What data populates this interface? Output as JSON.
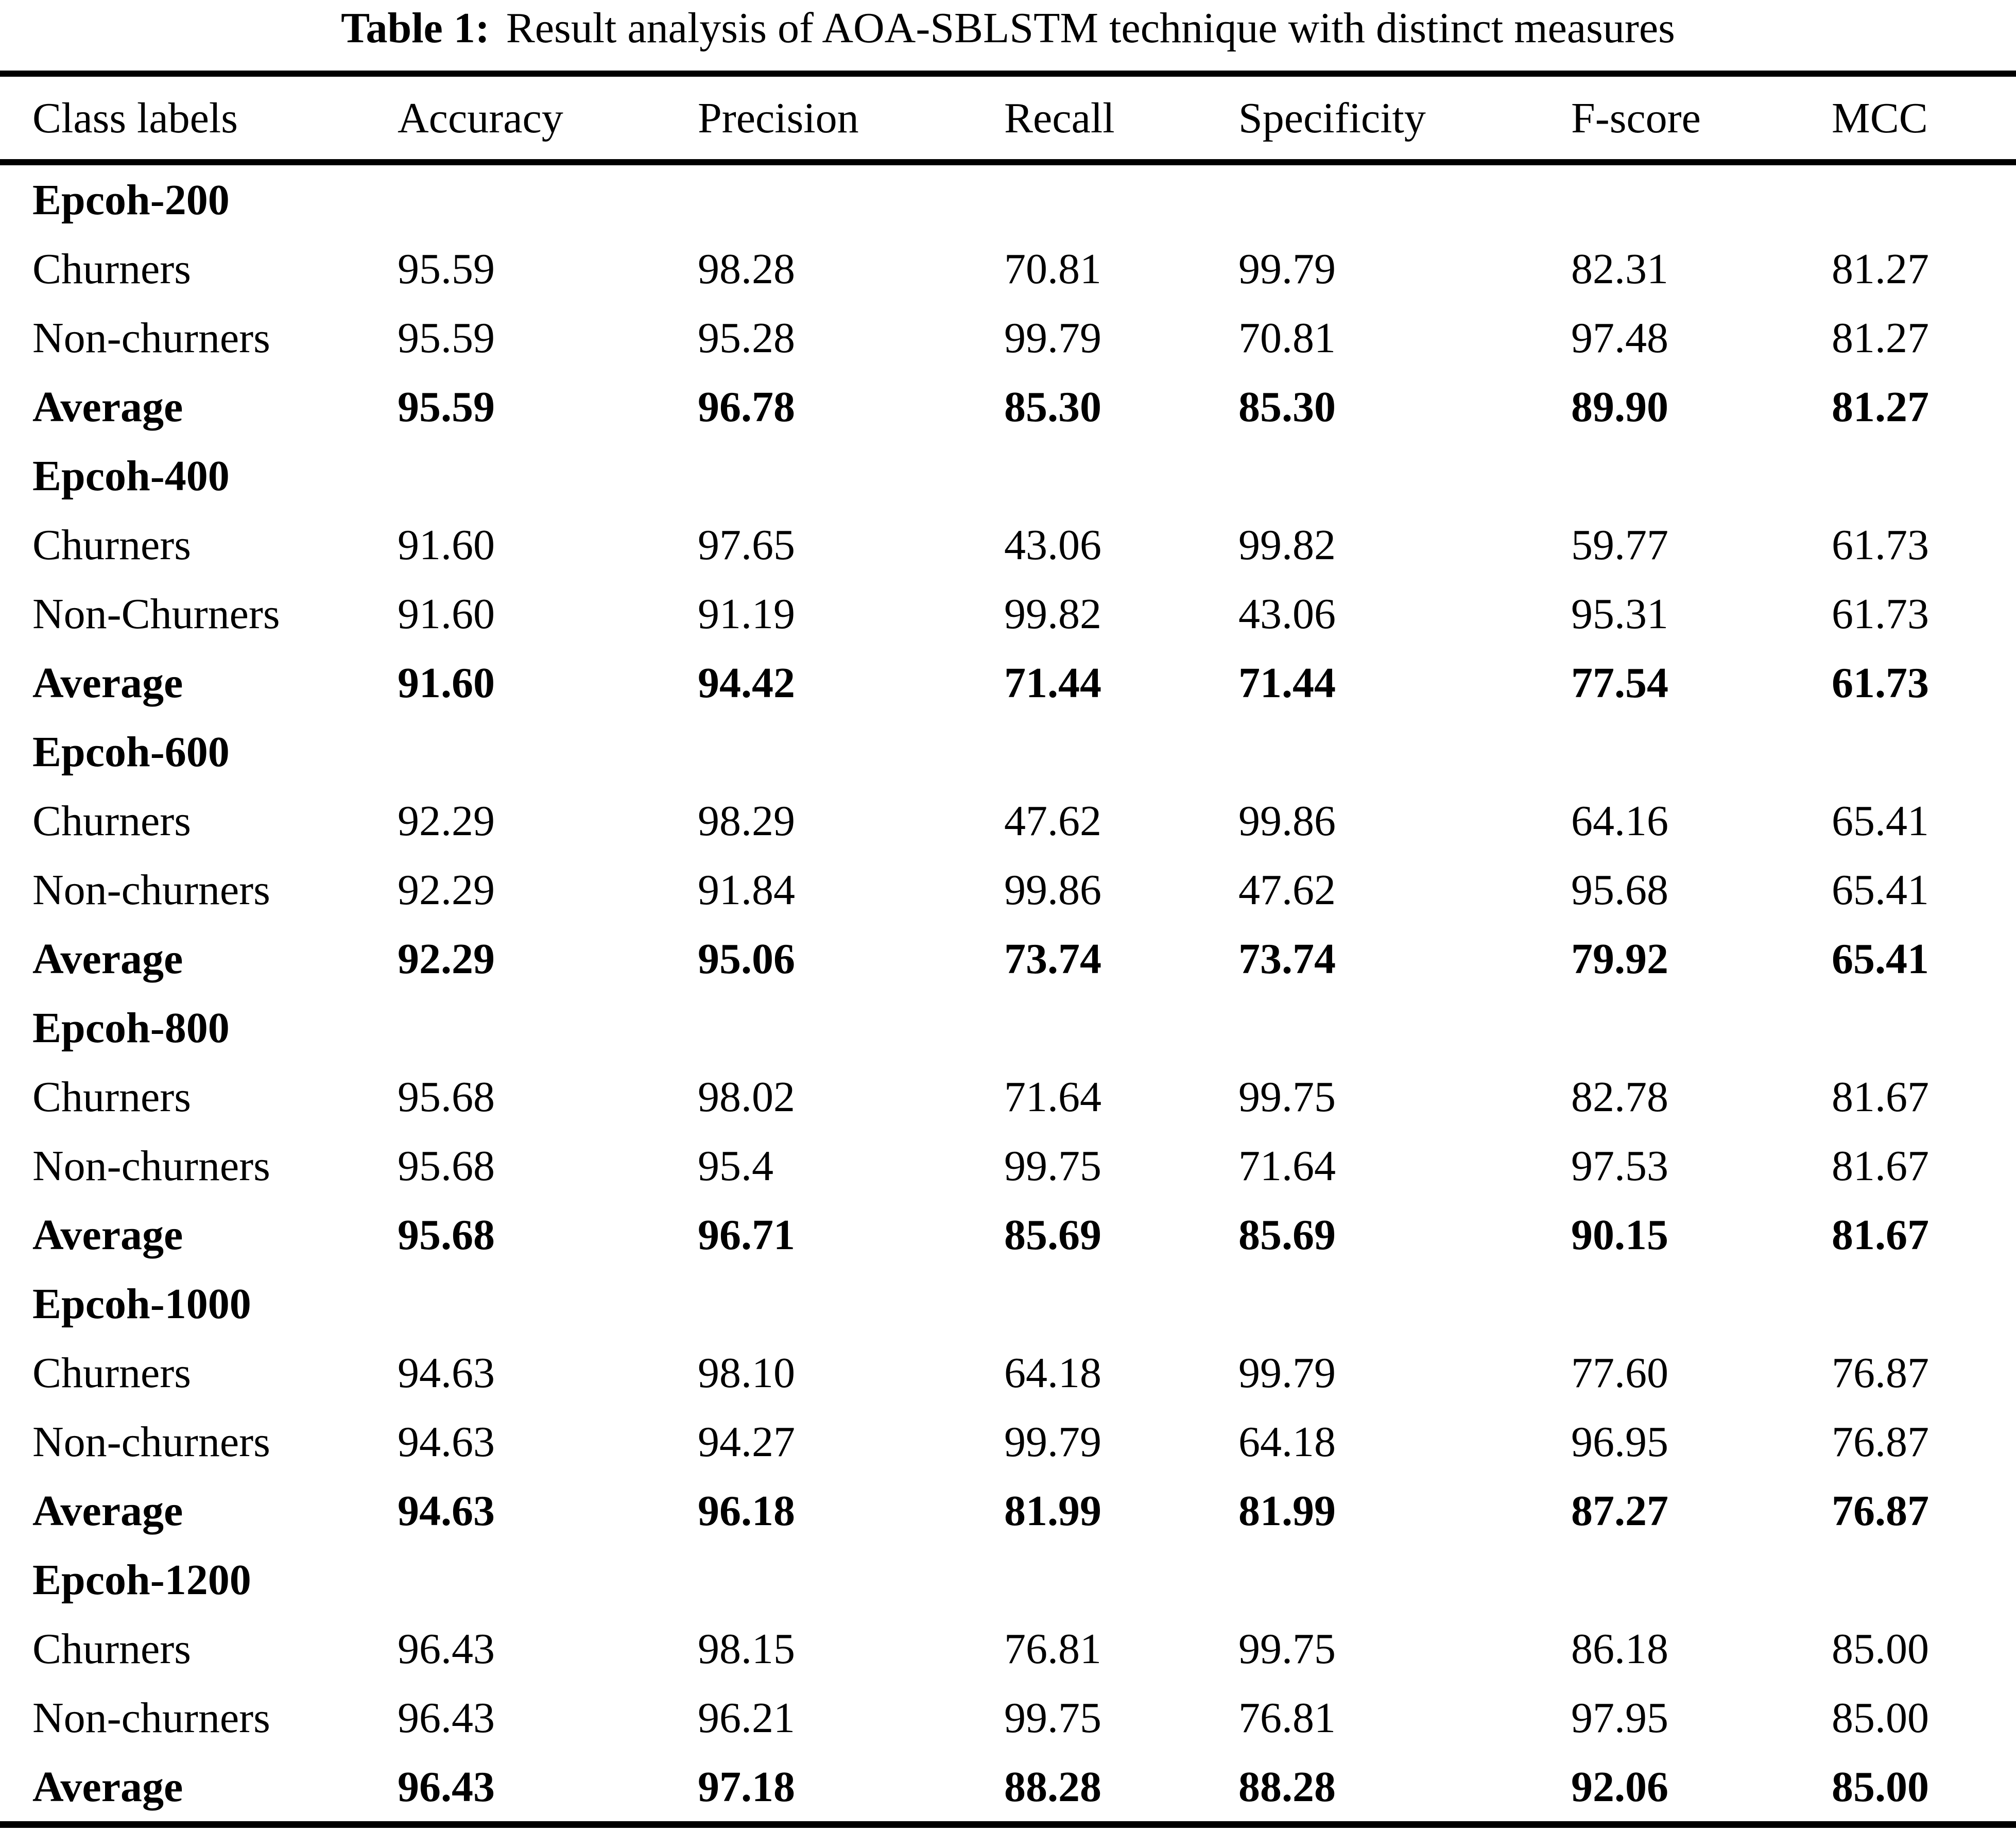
{
  "title": {
    "label": "Table 1:",
    "text": "Result analysis of AOA-SBLSTM technique with distinct measures"
  },
  "columns": [
    "Class labels",
    "Accuracy",
    "Precision",
    "Recall",
    "Specificity",
    "F-score",
    "MCC"
  ],
  "sections": [
    {
      "header": "Epcoh-200",
      "rows": [
        {
          "label": "Churners",
          "values": [
            "95.59",
            "98.28",
            "70.81",
            "99.79",
            "82.31",
            "81.27"
          ]
        },
        {
          "label": "Non-churners",
          "values": [
            "95.59",
            "95.28",
            "99.79",
            "70.81",
            "97.48",
            "81.27"
          ]
        },
        {
          "label": "Average",
          "values": [
            "95.59",
            "96.78",
            "85.30",
            "85.30",
            "89.90",
            "81.27"
          ]
        }
      ]
    },
    {
      "header": "Epcoh-400",
      "rows": [
        {
          "label": "Churners",
          "values": [
            "91.60",
            "97.65",
            "43.06",
            "99.82",
            "59.77",
            "61.73"
          ]
        },
        {
          "label": "Non-Churners",
          "values": [
            "91.60",
            "91.19",
            "99.82",
            "43.06",
            "95.31",
            "61.73"
          ]
        },
        {
          "label": "Average",
          "values": [
            "91.60",
            "94.42",
            "71.44",
            "71.44",
            "77.54",
            "61.73"
          ]
        }
      ]
    },
    {
      "header": "Epcoh-600",
      "rows": [
        {
          "label": "Churners",
          "values": [
            "92.29",
            "98.29",
            "47.62",
            "99.86",
            "64.16",
            "65.41"
          ]
        },
        {
          "label": "Non-churners",
          "values": [
            "92.29",
            "91.84",
            "99.86",
            "47.62",
            "95.68",
            "65.41"
          ]
        },
        {
          "label": "Average",
          "values": [
            "92.29",
            "95.06",
            "73.74",
            "73.74",
            "79.92",
            "65.41"
          ]
        }
      ]
    },
    {
      "header": "Epcoh-800",
      "rows": [
        {
          "label": "Churners",
          "values": [
            "95.68",
            "98.02",
            "71.64",
            "99.75",
            "82.78",
            "81.67"
          ]
        },
        {
          "label": "Non-churners",
          "values": [
            "95.68",
            "95.4",
            "99.75",
            "71.64",
            "97.53",
            "81.67"
          ]
        },
        {
          "label": "Average",
          "values": [
            "95.68",
            "96.71",
            "85.69",
            "85.69",
            "90.15",
            "81.67"
          ]
        }
      ]
    },
    {
      "header": "Epcoh-1000",
      "rows": [
        {
          "label": "Churners",
          "values": [
            "94.63",
            "98.10",
            "64.18",
            "99.79",
            "77.60",
            "76.87"
          ]
        },
        {
          "label": "Non-churners",
          "values": [
            "94.63",
            "94.27",
            "99.79",
            "64.18",
            "96.95",
            "76.87"
          ]
        },
        {
          "label": "Average",
          "values": [
            "94.63",
            "96.18",
            "81.99",
            "81.99",
            "87.27",
            "76.87"
          ]
        }
      ]
    },
    {
      "header": "Epcoh-1200",
      "rows": [
        {
          "label": "Churners",
          "values": [
            "96.43",
            "98.15",
            "76.81",
            "99.75",
            "86.18",
            "85.00"
          ]
        },
        {
          "label": "Non-churners",
          "values": [
            "96.43",
            "96.21",
            "99.75",
            "76.81",
            "97.95",
            "85.00"
          ]
        },
        {
          "label": "Average",
          "values": [
            "96.43",
            "97.18",
            "88.28",
            "88.28",
            "92.06",
            "85.00"
          ]
        }
      ]
    }
  ]
}
